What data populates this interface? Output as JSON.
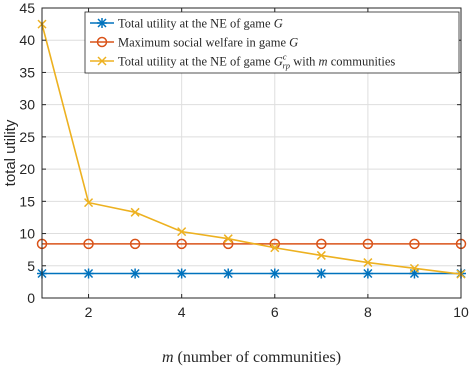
{
  "chart_data": {
    "type": "line",
    "x": [
      1,
      2,
      3,
      4,
      5,
      6,
      7,
      8,
      9,
      10
    ],
    "xlim": [
      1,
      10
    ],
    "ylim": [
      0,
      45
    ],
    "xticks": [
      2,
      4,
      6,
      8,
      10
    ],
    "yticks": [
      0,
      5,
      10,
      15,
      20,
      25,
      30,
      35,
      40,
      45
    ],
    "grid": true,
    "legend_position": "top-left",
    "xlabel_math": "m",
    "xlabel": "(number of communities)",
    "ylabel": "total utility",
    "series": [
      {
        "name": "Total utility at the NE of game G",
        "legend_prefix": "Total utility at the NE of game ",
        "legend_math": "G",
        "color": "#0072BD",
        "marker": "asterisk",
        "values": [
          3.8,
          3.8,
          3.8,
          3.8,
          3.8,
          3.8,
          3.8,
          3.8,
          3.8,
          3.8
        ]
      },
      {
        "name": "Maximum social welfare in game G",
        "legend_prefix": "Maximum social welfare in game ",
        "legend_math": "G",
        "color": "#D95319",
        "marker": "circle",
        "values": [
          8.4,
          8.4,
          8.4,
          8.4,
          8.4,
          8.4,
          8.4,
          8.4,
          8.4,
          8.4
        ]
      },
      {
        "name": "Total utility at the NE of game G^c_rp with m communities",
        "legend_prefix": "Total utility at the NE of game ",
        "legend_math": "G",
        "legend_sup": "c",
        "legend_sub": "rp",
        "legend_suffix": " with ",
        "legend_math2": "m",
        "legend_suffix2": " communities",
        "color": "#EDB120",
        "marker": "cross",
        "values": [
          42.5,
          14.8,
          13.3,
          10.3,
          9.2,
          7.8,
          6.6,
          5.5,
          4.6,
          3.7
        ]
      }
    ]
  }
}
